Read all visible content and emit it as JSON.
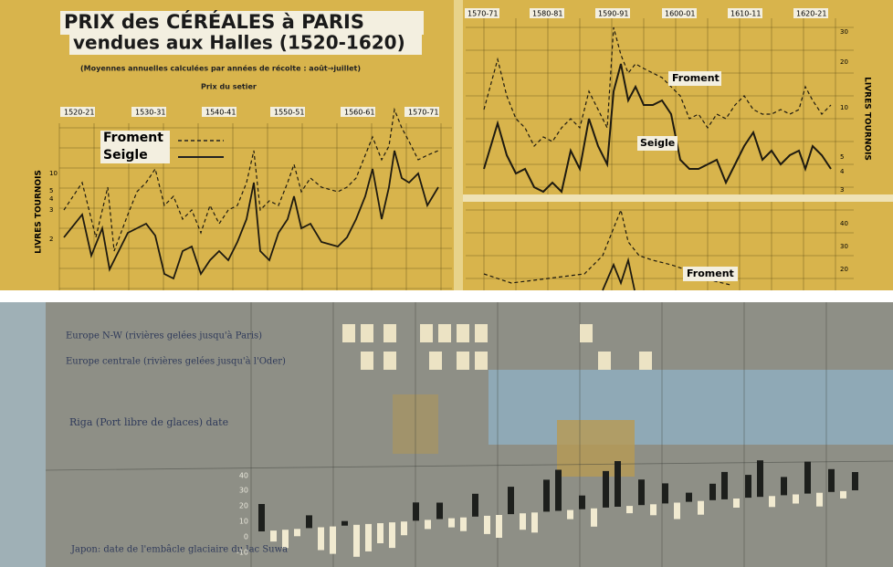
{
  "top_left": {
    "title": "PRIX des CÉRÉALES à PARIS",
    "subtitle": "vendues aux Halles (1520-1620)",
    "note": "(Moyennes annuelles calculées par années de récolte : août→juillet)",
    "unit": "Prix du setier",
    "periods": [
      "1520-21",
      "1530-31",
      "1540-41",
      "1550-51",
      "1560-61",
      "1570-71"
    ],
    "legend": [
      "Froment",
      "Seigle"
    ],
    "axis_label": "LIVRES TOURNOIS",
    "y_labels": [
      "10",
      "5",
      "4",
      "3",
      "2"
    ]
  },
  "top_right": {
    "periods": [
      "1570-71",
      "1580-81",
      "1590-91",
      "1600-01",
      "1610-11",
      "1620-21"
    ],
    "froment": "Froment",
    "seigle": "Seigle",
    "axis_label": "LIVRES TOURNOIS",
    "y_labels": [
      "30",
      "20",
      "10",
      "5",
      "4",
      "3"
    ],
    "lower_y_labels": [
      "40",
      "30",
      "20"
    ],
    "lower_froment": "Froment"
  },
  "bottom": {
    "rows": [
      "Europe N-W (rivières gelées jusqu'à Paris)",
      "Europe centrale (rivières gelées jusqu'à l'Oder)",
      "Riga (Port libre de glaces) date",
      "Japon: date de l'embâcle glaciaire du lac Suwa"
    ],
    "japan_scale": [
      "40",
      "30",
      "20",
      "10",
      "0",
      "-10"
    ]
  }
}
